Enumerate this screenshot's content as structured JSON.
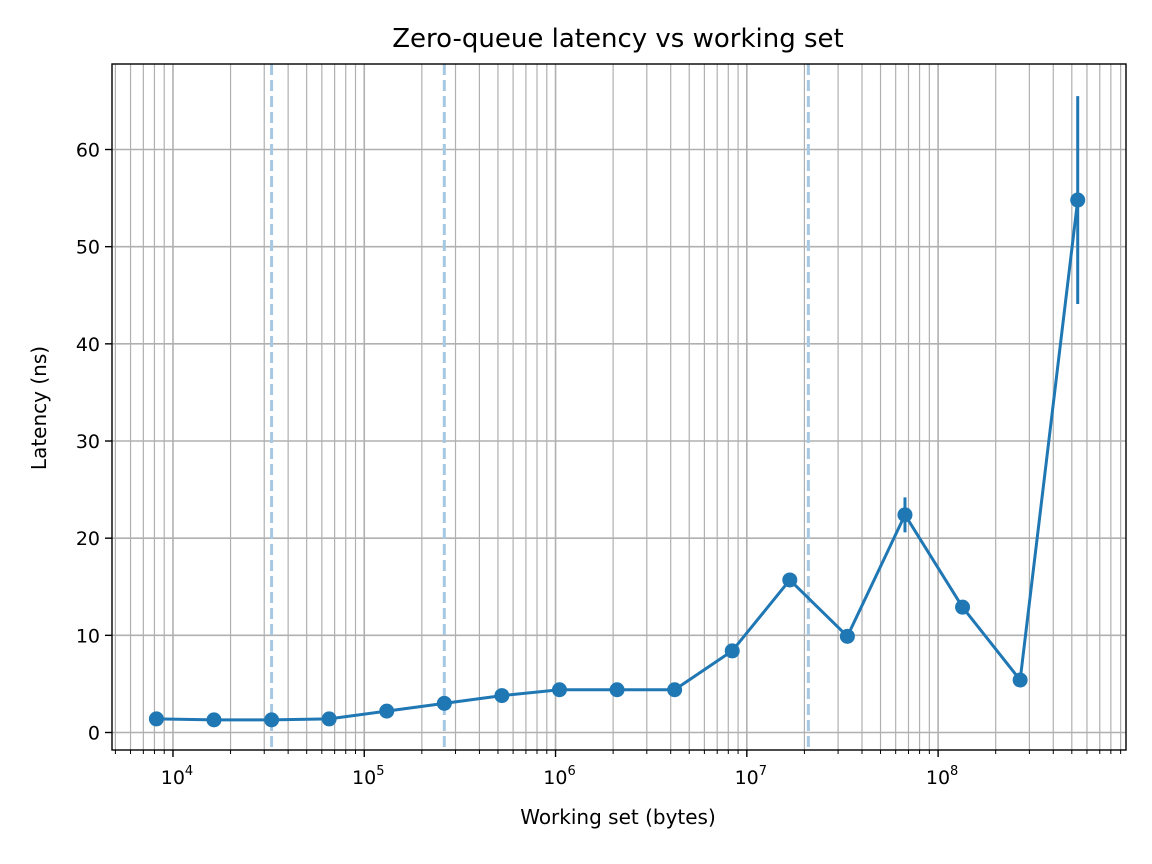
{
  "chart_data": {
    "type": "line",
    "title": "Zero-queue latency vs working set",
    "xlabel": "Working set (bytes)",
    "ylabel": "Latency (ns)",
    "x_scale": "log",
    "xlim": [
      4800,
      960000000
    ],
    "ylim": [
      -1.8,
      68.8
    ],
    "grid": true,
    "x_ticks": [
      {
        "base": "10",
        "exp": "4",
        "value": 10000
      },
      {
        "base": "10",
        "exp": "5",
        "value": 100000
      },
      {
        "base": "10",
        "exp": "6",
        "value": 1000000
      },
      {
        "base": "10",
        "exp": "7",
        "value": 10000000
      },
      {
        "base": "10",
        "exp": "8",
        "value": 100000000
      }
    ],
    "y_ticks": [
      "0",
      "10",
      "20",
      "30",
      "40",
      "50",
      "60"
    ],
    "vlines": [
      32768,
      262144,
      20971520
    ],
    "series": [
      {
        "color": "#1f77b4",
        "x": [
          8192,
          16384,
          32768,
          65536,
          131072,
          262144,
          524288,
          1048576,
          2097152,
          4194304,
          8388608,
          16777216,
          33554432,
          67108864,
          134217728,
          268435456,
          536870912
        ],
        "y": [
          1.4,
          1.3,
          1.3,
          1.4,
          2.2,
          3.0,
          3.8,
          4.4,
          4.4,
          4.4,
          8.4,
          15.7,
          9.9,
          22.4,
          12.9,
          5.4,
          54.8
        ],
        "err": [
          0,
          0,
          0,
          0,
          0,
          0,
          0,
          0,
          0,
          0,
          0,
          0,
          0,
          1.8,
          0,
          0,
          10.7
        ]
      }
    ],
    "vline_color": "#a6c8e2"
  }
}
